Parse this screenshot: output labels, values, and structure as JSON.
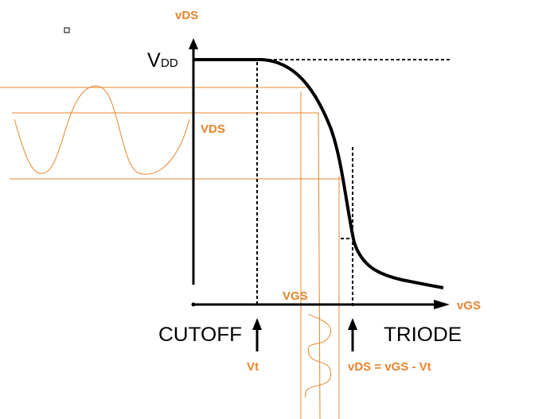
{
  "labels": {
    "vds_axis": "vDS",
    "vdd_main": "V",
    "vdd_sub": "DD",
    "vds_swing": "VDS",
    "vgs_swing": "VGS",
    "vgs_axis": "vGS",
    "cutoff": "CUTOFF",
    "triode": "TRIODE",
    "vt": "Vt",
    "boundary": "vDS = vGS - Vt"
  }
}
